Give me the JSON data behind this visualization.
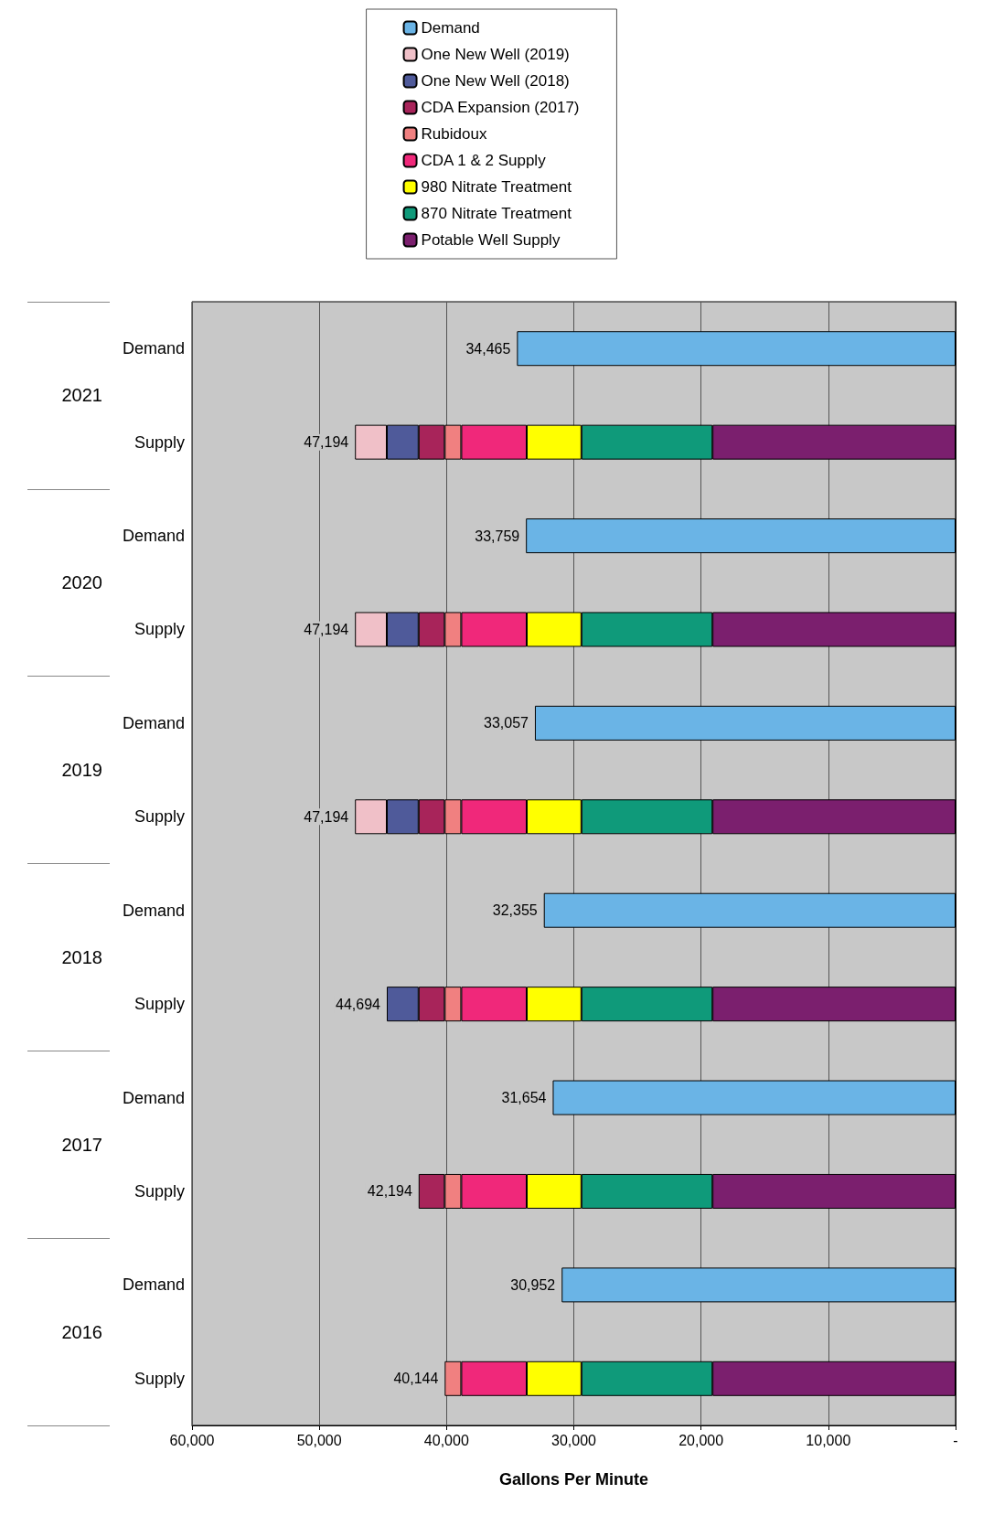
{
  "chart_data": {
    "type": "bar",
    "orientation": "horizontal",
    "stacked": true,
    "xlabel": "Gallons Per Minute",
    "categories": [
      "Demand",
      "Supply",
      "Demand",
      "Supply",
      "Demand",
      "Supply",
      "Demand",
      "Supply",
      "Demand",
      "Supply",
      "Demand",
      "Supply"
    ],
    "annotations": [
      "2021",
      "2020",
      "2019",
      "2018",
      "2017",
      "2016"
    ],
    "series": [
      {
        "name": "Potable Well Supply",
        "color": "#7b1f6e",
        "values": [
          null,
          19100,
          null,
          19100,
          null,
          19100,
          null,
          19100,
          null,
          19100,
          null,
          19100
        ]
      },
      {
        "name": "870 Nitrate Treatment",
        "color": "#0f9a7a",
        "values": [
          null,
          10300,
          null,
          10300,
          null,
          10300,
          null,
          10300,
          null,
          10300,
          null,
          10300
        ]
      },
      {
        "name": "980 Nitrate Treatment",
        "color": "#ffff00",
        "values": [
          null,
          4300,
          null,
          4300,
          null,
          4300,
          null,
          4300,
          null,
          4300,
          null,
          4300
        ]
      },
      {
        "name": "CDA 1 & 2 Supply",
        "color": "#f0287a",
        "values": [
          null,
          5144,
          null,
          5144,
          null,
          5144,
          null,
          5144,
          null,
          5144,
          null,
          5144
        ]
      },
      {
        "name": "Rubidoux",
        "color": "#f08080",
        "values": [
          null,
          1300,
          null,
          1300,
          null,
          1300,
          null,
          1300,
          null,
          1300,
          null,
          1300
        ]
      },
      {
        "name": "CDA Expansion (2017)",
        "color": "#a8245a",
        "values": [
          null,
          2050,
          null,
          2050,
          null,
          2050,
          null,
          2050,
          null,
          2050,
          null,
          null
        ]
      },
      {
        "name": "One New Well (2018)",
        "color": "#4f5a9a",
        "values": [
          null,
          2500,
          null,
          2500,
          null,
          2500,
          null,
          2500,
          null,
          null,
          null,
          null
        ]
      },
      {
        "name": "One New Well (2019)",
        "color": "#f0c0c8",
        "values": [
          null,
          2500,
          null,
          2500,
          null,
          2500,
          null,
          null,
          null,
          null,
          null,
          null
        ]
      },
      {
        "name": "Demand",
        "color": "#6ab4e6",
        "values": [
          34465,
          null,
          33759,
          null,
          33057,
          null,
          32355,
          null,
          31654,
          null,
          30952,
          null
        ],
        "value_labels": [
          "34,465",
          null,
          "33,759",
          null,
          "33,057",
          null,
          "32,355",
          null,
          "31,654",
          null,
          "30,952",
          null
        ]
      }
    ],
    "totals": [
      null,
      "47,194",
      null,
      "47,194",
      null,
      "47,194",
      null,
      "44,694",
      null,
      "42,194",
      null,
      "40,144"
    ],
    "xlim": [
      60000,
      0
    ],
    "xticks": [
      {
        "value": 60000,
        "label": "60,000"
      },
      {
        "value": 50000,
        "label": "50,000"
      },
      {
        "value": 40000,
        "label": "40,000"
      },
      {
        "value": 30000,
        "label": "30,000"
      },
      {
        "value": 20000,
        "label": "20,000"
      },
      {
        "value": 10000,
        "label": "10,000"
      },
      {
        "value": 0,
        "label": "-"
      }
    ],
    "grid": "x",
    "legend": "top"
  }
}
